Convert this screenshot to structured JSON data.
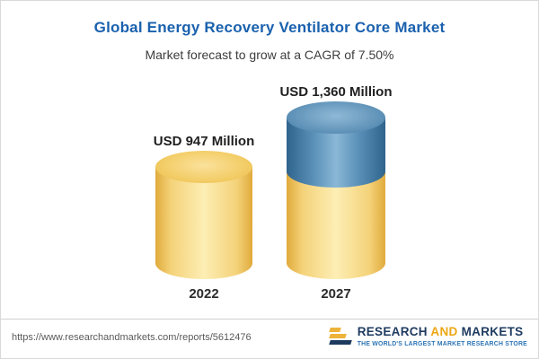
{
  "chart_data": {
    "type": "bar",
    "title": "Global Energy Recovery Ventilator Core Market",
    "subtitle": "Market forecast to grow at a CAGR of 7.50%",
    "categories": [
      "2022",
      "2027"
    ],
    "values": [
      947,
      1360
    ],
    "value_labels": [
      "USD 947 Million",
      "USD 1,360 Million"
    ],
    "unit": "USD Million",
    "cagr_percent": 7.5,
    "ylabel": "",
    "xlabel": "",
    "legend": "none",
    "grid": false,
    "colors": {
      "base_segment": "#F2CE68",
      "growth_segment": "#5C92B9",
      "title_text": "#1A61AE"
    }
  },
  "footer": {
    "url": "https://www.researchandmarkets.com/reports/5612476",
    "logo": {
      "word1": "RESEARCH",
      "word2": "AND",
      "word3": "MARKETS",
      "tagline": "THE WORLD'S LARGEST MARKET RESEARCH STORE"
    }
  }
}
